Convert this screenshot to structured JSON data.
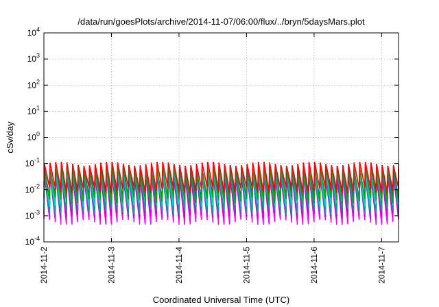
{
  "chart_data": {
    "type": "line",
    "title": "/data/run/goesPlots/archive/2014-11-07/06:00/flux/../bryn/5daysMars.plot",
    "xlabel": "Coordinated Universal Time (UTC)",
    "ylabel": "cSv/day",
    "y_scale": "log",
    "ylim": [
      0.0001,
      10000
    ],
    "y_ticks": [
      {
        "value": 0.0001,
        "base": "10",
        "exp": "-4"
      },
      {
        "value": 0.001,
        "base": "10",
        "exp": "-3"
      },
      {
        "value": 0.01,
        "base": "10",
        "exp": "-2"
      },
      {
        "value": 0.1,
        "base": "10",
        "exp": "-1"
      },
      {
        "value": 1,
        "base": "10",
        "exp": "0"
      },
      {
        "value": 10,
        "base": "10",
        "exp": "1"
      },
      {
        "value": 100,
        "base": "10",
        "exp": "2"
      },
      {
        "value": 1000,
        "base": "10",
        "exp": "3"
      },
      {
        "value": 10000,
        "base": "10",
        "exp": "4"
      }
    ],
    "x_range": [
      "2014-11-02T00:00",
      "2014-11-07T06:00"
    ],
    "x_ticks": [
      "2014-11-2",
      "2014-11-3",
      "2014-11-4",
      "2014-11-5",
      "2014-11-6",
      "2014-11-7"
    ],
    "x_tick_dates": [
      "2014-11-02",
      "2014-11-03",
      "2014-11-04",
      "2014-11-05",
      "2014-11-06",
      "2014-11-07"
    ],
    "grid": true,
    "legend": "none",
    "series_pattern": "sawtooth",
    "sawtooth_period_hours": 2,
    "series": [
      {
        "color": "#ff00ff",
        "peak": 0.04,
        "trough": 0.0006
      },
      {
        "color": "#cc00cc",
        "peak": 0.03,
        "trough": 0.001
      },
      {
        "color": "#00a0a0",
        "peak": 0.045,
        "trough": 0.0015
      },
      {
        "color": "#00d0d0",
        "peak": 0.06,
        "trough": 0.003
      },
      {
        "color": "#1f3fff",
        "peak": 0.075,
        "trough": 0.006
      },
      {
        "color": "#00aa00",
        "peak": 0.065,
        "trough": 0.004
      },
      {
        "color": "#ff0000",
        "peak": 0.1,
        "trough": 0.01
      }
    ]
  }
}
